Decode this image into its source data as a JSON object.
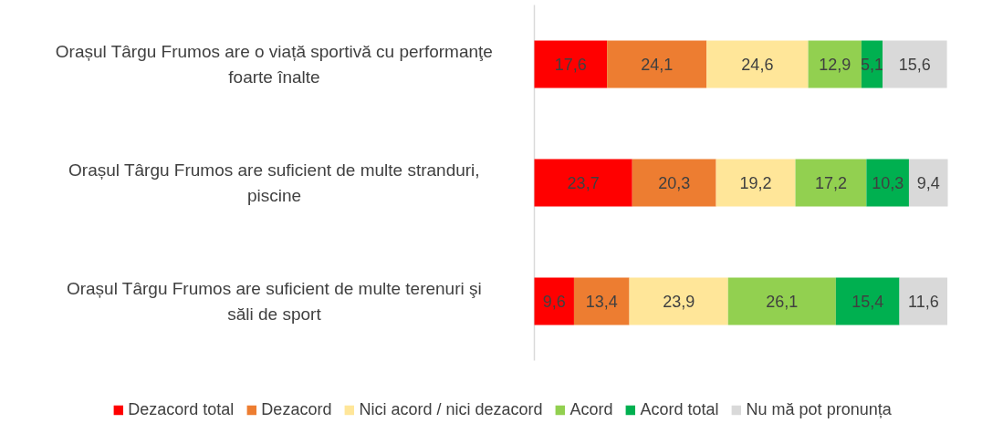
{
  "chart_data": {
    "type": "bar",
    "orientation": "horizontal",
    "stacked": true,
    "grid": false,
    "legend": "bottom",
    "categories": [
      "Orașul Târgu Frumos are o viață sportivă cu performanţe foarte înalte",
      "Orașul Târgu Frumos are suficient de multe stranduri, piscine",
      "Orașul Târgu Frumos are suficient de multe terenuri şi săli de sport"
    ],
    "series": [
      {
        "name": "Dezacord total",
        "color": "#ff0000",
        "values": [
          17.6,
          23.7,
          9.6
        ],
        "value_labels": [
          "17,6",
          "23,7",
          "9,6"
        ]
      },
      {
        "name": "Dezacord",
        "color": "#ed7d31",
        "values": [
          24.1,
          20.3,
          13.4
        ],
        "value_labels": [
          "24,1",
          "20,3",
          "13,4"
        ]
      },
      {
        "name": "Nici acord / nici dezacord",
        "color": "#ffe699",
        "values": [
          24.6,
          19.2,
          23.9
        ],
        "value_labels": [
          "24,6",
          "19,2",
          "23,9"
        ]
      },
      {
        "name": "Acord",
        "color": "#92d050",
        "values": [
          12.9,
          17.2,
          26.1
        ],
        "value_labels": [
          "12,9",
          "17,2",
          "26,1"
        ]
      },
      {
        "name": "Acord total",
        "color": "#00b050",
        "values": [
          5.1,
          10.3,
          15.4
        ],
        "value_labels": [
          "5,1",
          "10,3",
          "15,4"
        ]
      },
      {
        "name": "Nu mă pot pronunța",
        "color": "#d9d9d9",
        "values": [
          15.6,
          9.4,
          11.6
        ],
        "value_labels": [
          "15,6",
          "9,4",
          "11,6"
        ]
      }
    ]
  }
}
